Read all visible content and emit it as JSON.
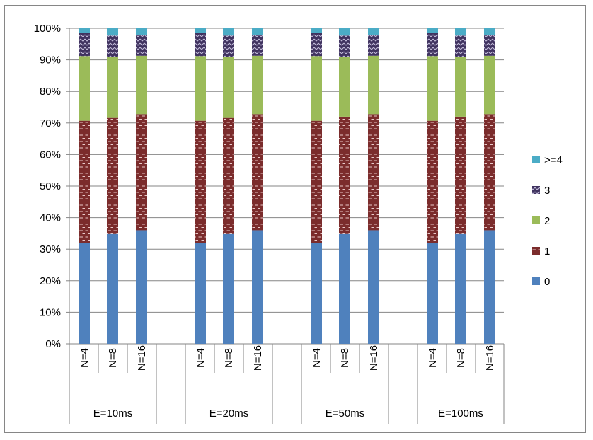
{
  "chart_data": {
    "type": "bar",
    "stacked": true,
    "percent": true,
    "groups": [
      "E=10ms",
      "E=20ms",
      "E=50ms",
      "E=100ms"
    ],
    "subcategories": [
      "N=4",
      "N=8",
      "N=16"
    ],
    "categories": [
      "N=4",
      "N=8",
      "N=16",
      "N=4",
      "N=8",
      "N=16",
      "N=4",
      "N=8",
      "N=16",
      "N=4",
      "N=8",
      "N=16"
    ],
    "series": [
      {
        "name": "0",
        "color": "#4f81bd",
        "pattern": "solid",
        "values": [
          32,
          34.8,
          36,
          32,
          34.8,
          36,
          32,
          34.8,
          36,
          32,
          34.8,
          36
        ]
      },
      {
        "name": "1",
        "color": "#7b2c2c",
        "pattern": "dashes",
        "values": [
          38.7,
          36.8,
          36.8,
          38.7,
          36.8,
          36.8,
          38.7,
          37.2,
          36.8,
          38.7,
          37.2,
          36.8
        ]
      },
      {
        "name": "2",
        "color": "#9bbb59",
        "pattern": "solid",
        "values": [
          20.5,
          19.3,
          18.5,
          20.5,
          19.3,
          18.5,
          20.5,
          19.0,
          18.5,
          20.5,
          19.0,
          18.5
        ]
      },
      {
        "name": "3",
        "color": "#403360",
        "pattern": "zigzag",
        "values": [
          7.3,
          6.8,
          6.5,
          7.3,
          6.8,
          6.5,
          7.3,
          6.7,
          6.5,
          7.3,
          6.7,
          6.5
        ]
      },
      {
        "name": ">=4",
        "color": "#4bacc6",
        "pattern": "solid",
        "values": [
          1.5,
          2.3,
          2.2,
          1.5,
          2.3,
          2.2,
          1.5,
          2.3,
          2.2,
          1.5,
          2.3,
          2.2
        ]
      }
    ],
    "legend_order": [
      ">=4",
      "3",
      "2",
      "1",
      "0"
    ],
    "yticks": [
      "0%",
      "10%",
      "20%",
      "30%",
      "40%",
      "50%",
      "60%",
      "70%",
      "80%",
      "90%",
      "100%"
    ],
    "ylim": [
      0,
      100
    ],
    "grid": true,
    "legend_position": "right",
    "title": "",
    "xlabel": "",
    "ylabel": ""
  }
}
